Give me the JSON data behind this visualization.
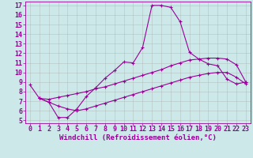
{
  "xlabel": "Windchill (Refroidissement éolien,°C)",
  "bg_color": "#cce8e8",
  "line_color": "#990099",
  "xlim": [
    -0.5,
    23.5
  ],
  "ylim": [
    4.7,
    17.4
  ],
  "xticks": [
    0,
    1,
    2,
    3,
    4,
    5,
    6,
    7,
    8,
    9,
    10,
    11,
    12,
    13,
    14,
    15,
    16,
    17,
    18,
    19,
    20,
    21,
    22,
    23
  ],
  "yticks": [
    5,
    6,
    7,
    8,
    9,
    10,
    11,
    12,
    13,
    14,
    15,
    16,
    17
  ],
  "line1_x": [
    0,
    1,
    2,
    3,
    4,
    5,
    6,
    7,
    8,
    9,
    10,
    11,
    12,
    13,
    14,
    15,
    16,
    17,
    18,
    19,
    20,
    21,
    22,
    23
  ],
  "line1_y": [
    8.7,
    7.3,
    6.9,
    5.3,
    5.3,
    6.2,
    7.5,
    8.4,
    9.4,
    10.2,
    11.1,
    11.0,
    12.6,
    17.0,
    17.0,
    16.8,
    15.3,
    12.1,
    11.4,
    10.9,
    10.7,
    9.3,
    8.8,
    9.0
  ],
  "line2_x": [
    1,
    2,
    3,
    4,
    5,
    6,
    7,
    8,
    9,
    10,
    11,
    12,
    13,
    14,
    15,
    16,
    17,
    18,
    19,
    20,
    21,
    22,
    23
  ],
  "line2_y": [
    7.3,
    7.2,
    7.4,
    7.6,
    7.8,
    8.0,
    8.3,
    8.5,
    8.8,
    9.1,
    9.4,
    9.7,
    10.0,
    10.3,
    10.7,
    11.0,
    11.3,
    11.4,
    11.5,
    11.5,
    11.4,
    10.8,
    9.0
  ],
  "line3_x": [
    1,
    2,
    3,
    4,
    5,
    6,
    7,
    8,
    9,
    10,
    11,
    12,
    13,
    14,
    15,
    16,
    17,
    18,
    19,
    20,
    21,
    22,
    23
  ],
  "line3_y": [
    7.3,
    6.9,
    6.5,
    6.2,
    6.0,
    6.2,
    6.5,
    6.8,
    7.1,
    7.4,
    7.7,
    8.0,
    8.3,
    8.6,
    8.9,
    9.2,
    9.5,
    9.7,
    9.9,
    10.0,
    10.0,
    9.5,
    8.8
  ],
  "grid_color": "#aaaaaa",
  "xlabel_fontsize": 6.5,
  "tick_fontsize": 6.0
}
